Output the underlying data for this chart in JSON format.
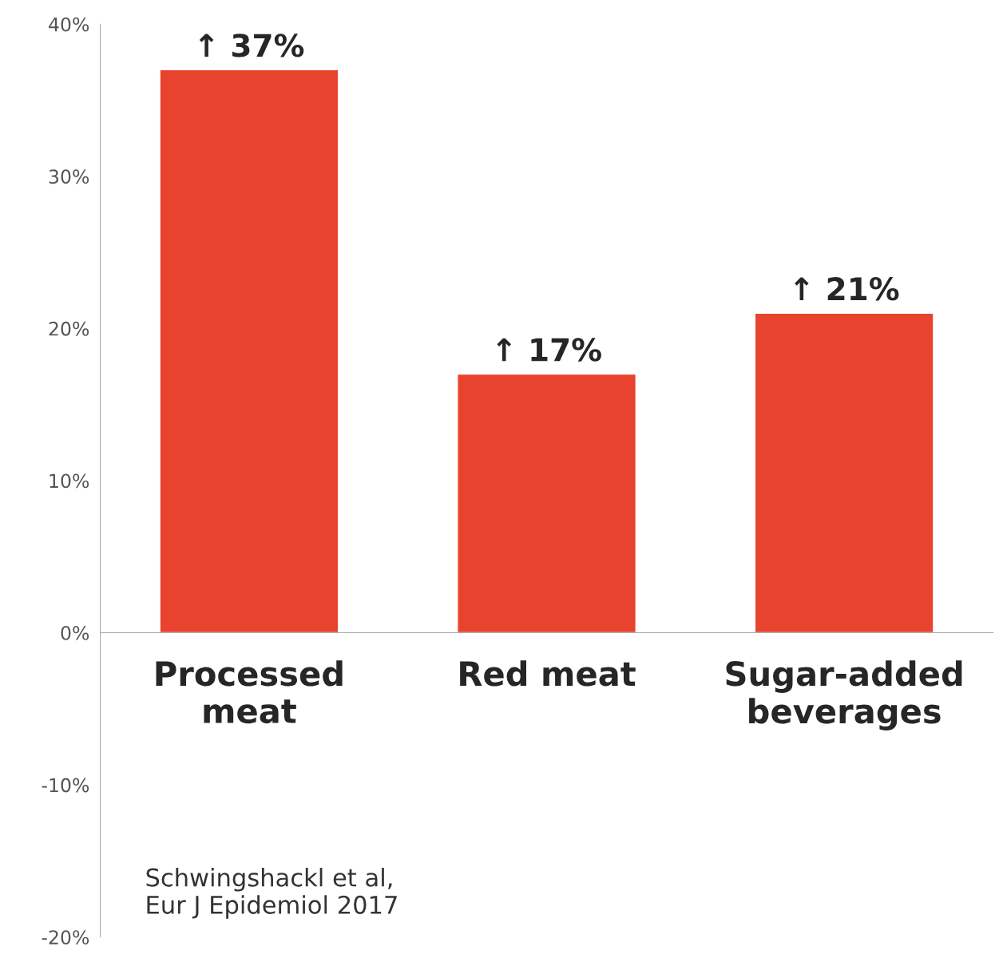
{
  "chart_data": {
    "type": "bar",
    "categories": [
      "Processed\nmeat",
      "Red meat",
      "Sugar-added\nbeverages"
    ],
    "values": [
      37,
      17,
      21
    ],
    "value_labels": [
      "↑ 37%",
      "↑ 17%",
      "↑ 21%"
    ],
    "color": "#e8432e",
    "ylim": [
      -20,
      40
    ],
    "yticks": [
      {
        "value": -20,
        "label": "-20%"
      },
      {
        "value": -10,
        "label": "-10%"
      },
      {
        "value": 0,
        "label": "0%"
      },
      {
        "value": 10,
        "label": "10%"
      },
      {
        "value": 20,
        "label": "20%"
      },
      {
        "value": 30,
        "label": "30%"
      },
      {
        "value": 40,
        "label": "40%"
      }
    ],
    "grid": false,
    "annotations": [
      "Schwingshackl et al,\nEur J Epidemiol 2017"
    ]
  }
}
